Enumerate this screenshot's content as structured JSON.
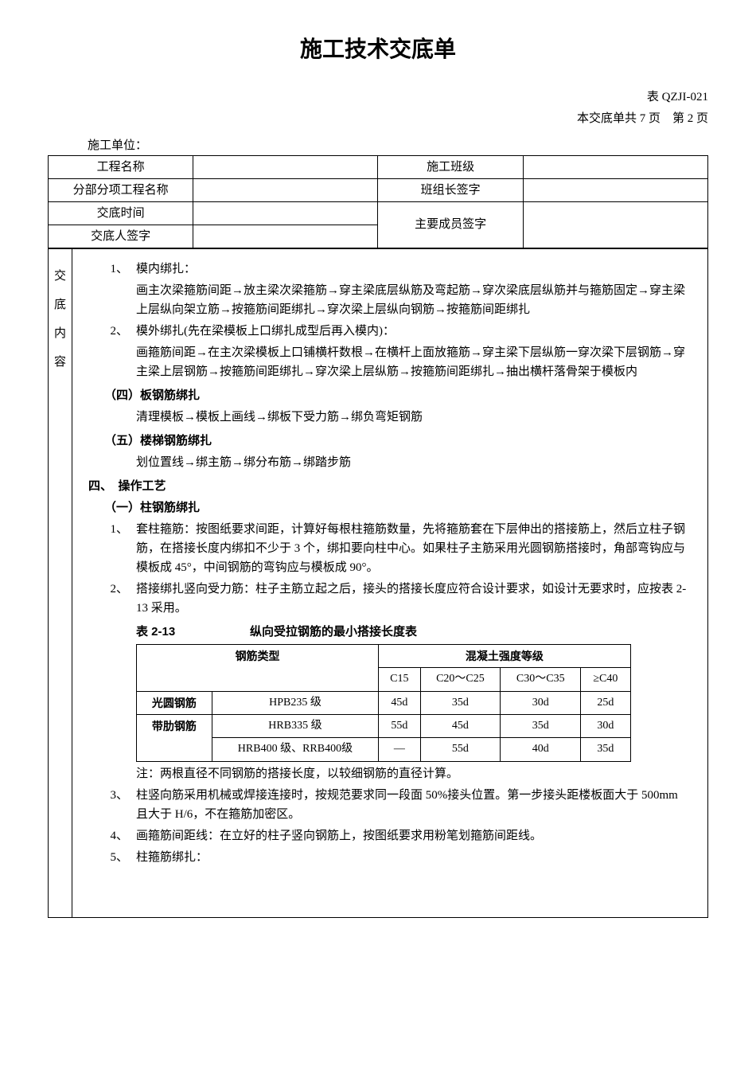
{
  "title": "施工技术交底单",
  "doc_code": "表 QZJI-021",
  "page_info": "本交底单共 7 页　第 2 页",
  "unit_label": "施工单位：",
  "header": {
    "row1": {
      "l1": "工程名称",
      "v1": "",
      "l2": "施工班级",
      "v2": ""
    },
    "row2": {
      "l1": "分部分项工程名称",
      "v1": "",
      "l2": "班组长签字",
      "v2": ""
    },
    "row3": {
      "l1": "交底时间",
      "v1": "",
      "l2": "主要成员签字",
      "v2": ""
    },
    "row4": {
      "l1": "交底人签字",
      "v1": ""
    }
  },
  "side_label": {
    "c1": "交",
    "c2": "底",
    "c3": "内",
    "c4": "容"
  },
  "content": {
    "item1_num": "1、",
    "item1_title": "模内绑扎：",
    "item1_body": "画主次梁箍筋间距→放主梁次梁箍筋→穿主梁底层纵筋及弯起筋→穿次梁底层纵筋并与箍筋固定→穿主梁上层纵向架立筋→按箍筋间距绑扎→穿次梁上层纵向钢筋→按箍筋间距绑扎",
    "item2_num": "2、",
    "item2_title": "模外绑扎(先在梁模板上口绑扎成型后再入模内)：",
    "item2_body": "画箍筋间距→在主次梁模板上口铺横杆数根→在横杆上面放箍筋→穿主梁下层纵筋一穿次梁下层钢筋→穿主梁上层钢筋→按箍筋间距绑扎→穿次梁上层纵筋→按箍筋间距绑扎→抽出横杆落骨架于模板内",
    "sec4_title": "（四）板钢筋绑扎",
    "sec4_body": "清理模板→模板上画线→绑板下受力筋→绑负弯矩钢筋",
    "sec5_title": "（五）楼梯钢筋绑扎",
    "sec5_body": "划位置线→绑主筋→绑分布筋→绑踏步筋",
    "main4_title": "四、　操作工艺",
    "sub1_title": "（一）柱钢筋绑扎",
    "p1_num": "1、",
    "p1_body": "套柱箍筋：按图纸要求间距，计算好每根柱箍筋数量，先将箍筋套在下层伸出的搭接筋上，然后立柱子钢筋，在搭接长度内绑扣不少于 3 个，绑扣要向柱中心。如果柱子主筋采用光圆钢筋搭接时，角部弯钩应与模板成 45°，中间钢筋的弯钩应与模板成 90°。",
    "p2_num": "2、",
    "p2_body": "搭接绑扎竖向受力筋：柱子主筋立起之后，接头的搭接长度应符合设计要求，如设计无要求时，应按表 2-13 采用。",
    "table_num": "表 2-13",
    "table_title": "纵向受拉钢筋的最小搭接长度表",
    "tbl": {
      "h1": "钢筋类型",
      "h2": "混凝土强度等级",
      "c1": "C15",
      "c2": "C20～C25",
      "c3": "C30～C35",
      "c4": "≥C40",
      "r1_type": "光圆钢筋",
      "r1_grade": "HPB235 级",
      "r1_1": "45d",
      "r1_2": "35d",
      "r1_3": "30d",
      "r1_4": "25d",
      "r2_type": "带肋钢筋",
      "r2_grade": "HRB335 级",
      "r2_1": "55d",
      "r2_2": "45d",
      "r2_3": "35d",
      "r2_4": "30d",
      "r3_grade": "HRB400 级、RRB400级",
      "r3_1": "—",
      "r3_2": "55d",
      "r3_3": "40d",
      "r3_4": "35d"
    },
    "table_note": "注：两根直径不同钢筋的搭接长度，以较细钢筋的直径计算。",
    "p3_num": "3、",
    "p3_body": "柱竖向筋采用机械或焊接连接时，按规范要求同一段面 50%接头位置。第一步接头距楼板面大于 500mm 且大于 H/6，不在箍筋加密区。",
    "p4_num": "4、",
    "p4_body": "画箍筋间距线：在立好的柱子竖向钢筋上，按图纸要求用粉笔划箍筋间距线。",
    "p5_num": "5、",
    "p5_body": "柱箍筋绑扎："
  }
}
